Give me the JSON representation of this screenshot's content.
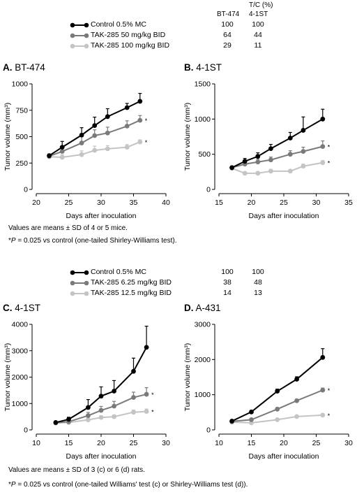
{
  "legend_top": {
    "header": "T/C (%)",
    "col_headers": [
      "BT-474",
      "4-1ST"
    ],
    "entries": [
      {
        "label": "Control 0.5% MC",
        "color": "#000000",
        "values": [
          "100",
          "100"
        ]
      },
      {
        "label": "TAK-285 50 mg/kg BID",
        "color": "#7a7a7a",
        "values": [
          "64",
          "44"
        ]
      },
      {
        "label": "TAK-285 100 mg/kg BID",
        "color": "#c4c4c4",
        "values": [
          "29",
          "11"
        ]
      }
    ]
  },
  "legend_bottom": {
    "entries": [
      {
        "label": "Control 0.5% MC",
        "color": "#000000",
        "values": [
          "100",
          "100"
        ]
      },
      {
        "label": "TAK-285 6.25 mg/kg BID",
        "color": "#7a7a7a",
        "values": [
          "38",
          "48"
        ]
      },
      {
        "label": "TAK-285 12.5 mg/kg BID",
        "color": "#c4c4c4",
        "values": [
          "14",
          "13"
        ]
      }
    ]
  },
  "notes_top": {
    "line1": "Values are means ± SD of 4 or 5 mice.",
    "line2_p": "P",
    "line2_prefix": "*",
    "line2_rest": " = 0.025 vs control (one-tailed Shirley-Williams test)."
  },
  "notes_bottom": {
    "line1": "Values are means ± SD of 3 (c) or 6 (d) rats.",
    "line2_p": "P",
    "line2_prefix": "*",
    "line2_rest": " = 0.025 vs control (one-tailed Williams' test (c) or Shirley-Williams test (d))."
  },
  "chart_data": [
    {
      "id": "A",
      "type": "line",
      "panel_letter": "A.",
      "panel_name": "BT-474",
      "xlabel": "Days after inoculation",
      "ylabel": "Tumor volume (mm³)",
      "xlim": [
        20,
        40
      ],
      "ylim": [
        0,
        1000
      ],
      "xticks": [
        20,
        25,
        30,
        35,
        40
      ],
      "yticks": [
        0,
        250,
        500,
        750,
        1000
      ],
      "x": [
        22,
        24,
        27,
        29,
        31,
        34,
        36
      ],
      "series": [
        {
          "color": "#000000",
          "values": [
            320,
            400,
            515,
            605,
            690,
            775,
            835
          ],
          "err": [
            15,
            55,
            70,
            80,
            75,
            40,
            75
          ],
          "star": false
        },
        {
          "color": "#7a7a7a",
          "values": [
            315,
            360,
            440,
            510,
            535,
            600,
            655
          ],
          "err": [
            15,
            40,
            60,
            55,
            55,
            50,
            45
          ],
          "star": true
        },
        {
          "color": "#c4c4c4",
          "values": [
            310,
            305,
            330,
            370,
            385,
            400,
            450
          ],
          "err": [
            12,
            25,
            35,
            40,
            30,
            25,
            20
          ],
          "star": true
        }
      ]
    },
    {
      "id": "B",
      "type": "line",
      "panel_letter": "B.",
      "panel_name": "4-1ST",
      "xlabel": "Days after inoculation",
      "ylabel": "Tumor volume (mm³)",
      "xlim": [
        15,
        35
      ],
      "ylim": [
        0,
        1500
      ],
      "xticks": [
        15,
        20,
        25,
        30,
        35
      ],
      "yticks": [
        0,
        500,
        1000,
        1500
      ],
      "x": [
        17,
        19,
        21,
        23,
        26,
        28,
        31
      ],
      "series": [
        {
          "color": "#000000",
          "values": [
            310,
            400,
            470,
            580,
            730,
            840,
            1000
          ],
          "err": [
            20,
            40,
            50,
            60,
            80,
            190,
            140
          ],
          "star": false
        },
        {
          "color": "#7a7a7a",
          "values": [
            310,
            360,
            390,
            420,
            500,
            540,
            610
          ],
          "err": [
            20,
            30,
            40,
            40,
            50,
            60,
            80
          ],
          "star": true
        },
        {
          "color": "#c4c4c4",
          "values": [
            300,
            230,
            230,
            260,
            260,
            330,
            380
          ],
          "err": [
            20,
            20,
            25,
            25,
            20,
            30,
            30
          ],
          "star": true
        }
      ]
    },
    {
      "id": "C",
      "type": "line",
      "panel_letter": "C.",
      "panel_name": "4-1ST",
      "xlabel": "Days after inoculation",
      "ylabel": "Tumor volume (mm³)",
      "xlim": [
        10,
        30
      ],
      "ylim": [
        0,
        4000
      ],
      "xticks": [
        10,
        15,
        20,
        25,
        30
      ],
      "yticks": [
        0,
        1000,
        2000,
        3000,
        4000
      ],
      "x": [
        13,
        15,
        18,
        20,
        22,
        25,
        27
      ],
      "series": [
        {
          "color": "#000000",
          "values": [
            280,
            400,
            850,
            1280,
            1470,
            2220,
            3130
          ],
          "err": [
            40,
            80,
            300,
            350,
            400,
            500,
            800
          ],
          "star": false
        },
        {
          "color": "#7a7a7a",
          "values": [
            270,
            310,
            540,
            740,
            900,
            1230,
            1350
          ],
          "err": [
            30,
            50,
            120,
            150,
            180,
            200,
            250
          ],
          "star": true
        },
        {
          "color": "#c4c4c4",
          "values": [
            260,
            280,
            380,
            470,
            500,
            670,
            700
          ],
          "err": [
            30,
            40,
            60,
            70,
            70,
            80,
            90
          ],
          "star": true
        }
      ]
    },
    {
      "id": "D",
      "type": "line",
      "panel_letter": "D.",
      "panel_name": "A-431",
      "xlabel": "Days after inoculation",
      "ylabel": "Tumor volume (mm³)",
      "xlim": [
        10,
        30
      ],
      "ylim": [
        0,
        3000
      ],
      "xticks": [
        10,
        15,
        20,
        25,
        30
      ],
      "yticks": [
        0,
        1000,
        2000,
        3000
      ],
      "x": [
        12,
        15,
        19,
        22,
        26
      ],
      "series": [
        {
          "color": "#000000",
          "values": [
            250,
            510,
            1100,
            1440,
            2060
          ],
          "err": [
            30,
            40,
            60,
            70,
            250
          ],
          "star": false
        },
        {
          "color": "#7a7a7a",
          "values": [
            240,
            290,
            590,
            830,
            1130
          ],
          "err": [
            30,
            30,
            40,
            40,
            60
          ],
          "star": true
        },
        {
          "color": "#c4c4c4",
          "values": [
            220,
            200,
            290,
            380,
            420
          ],
          "err": [
            20,
            20,
            30,
            30,
            40
          ],
          "star": true
        }
      ]
    }
  ]
}
